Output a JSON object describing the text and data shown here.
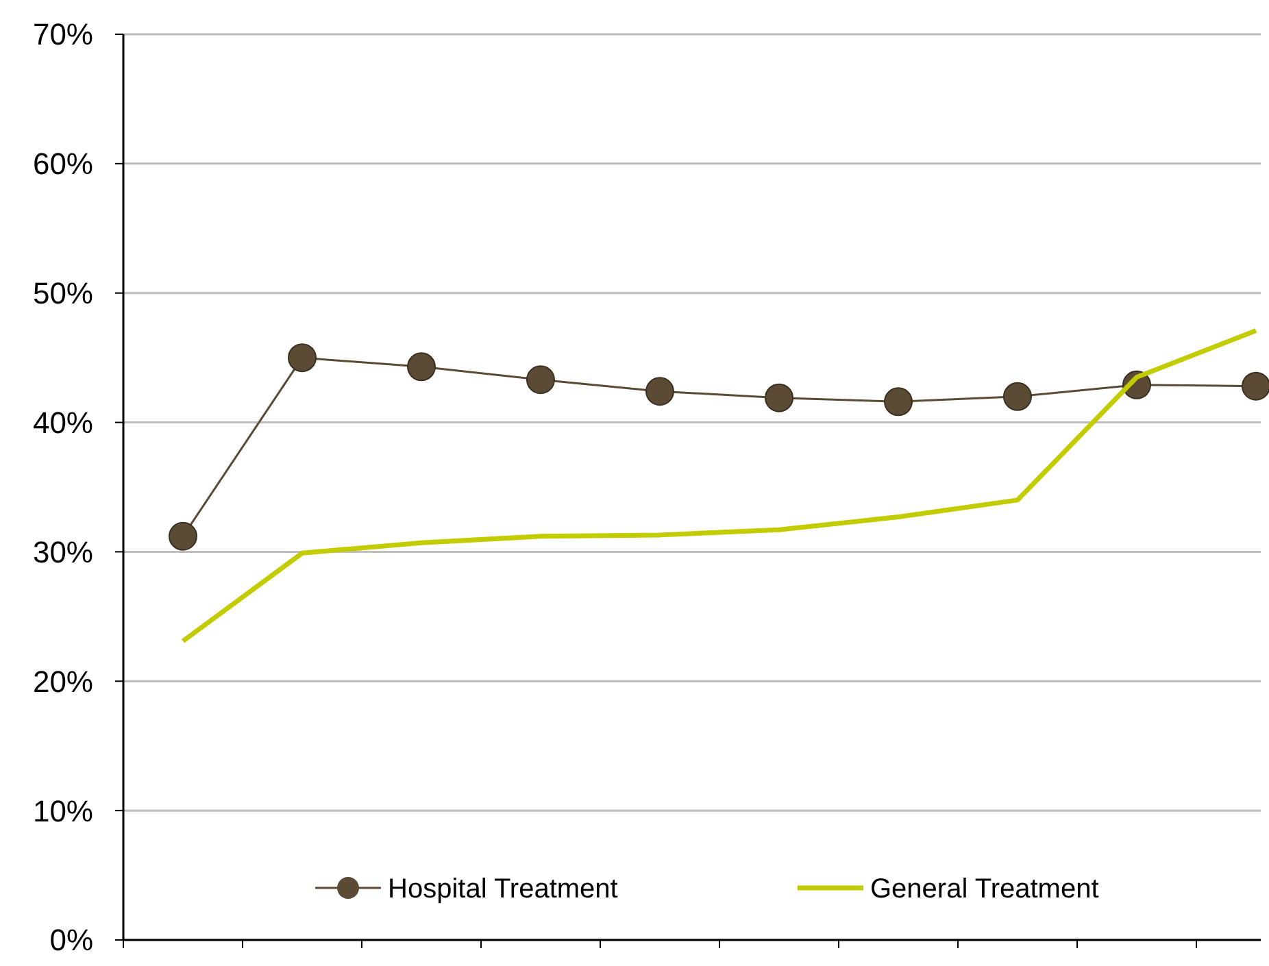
{
  "chart_data": {
    "type": "line",
    "categories": [
      null,
      null,
      null,
      null,
      null,
      null,
      null,
      null,
      null,
      null
    ],
    "series": [
      {
        "name": "Hospital Treatment",
        "color": "#5b4b34",
        "marker": "circle",
        "values": [
          31.2,
          45.0,
          44.3,
          43.3,
          42.4,
          41.9,
          41.6,
          42.0,
          42.9,
          42.8
        ]
      },
      {
        "name": "General Treatment",
        "color": "#c3cc00",
        "marker": "none",
        "values": [
          23.1,
          29.9,
          30.7,
          31.2,
          31.3,
          31.7,
          32.7,
          34.0,
          43.5,
          47.1
        ]
      }
    ],
    "ylim": [
      0,
      70
    ],
    "yticks": [
      {
        "value": 0,
        "label": "0%"
      },
      {
        "value": 10,
        "label": "10%"
      },
      {
        "value": 20,
        "label": "20%"
      },
      {
        "value": 30,
        "label": "30%"
      },
      {
        "value": 40,
        "label": "40%"
      },
      {
        "value": 50,
        "label": "50%"
      },
      {
        "value": 60,
        "label": "60%"
      },
      {
        "value": 70,
        "label": "70%"
      }
    ],
    "grid": "y",
    "legend": "bottom",
    "tick_labels": "y"
  }
}
